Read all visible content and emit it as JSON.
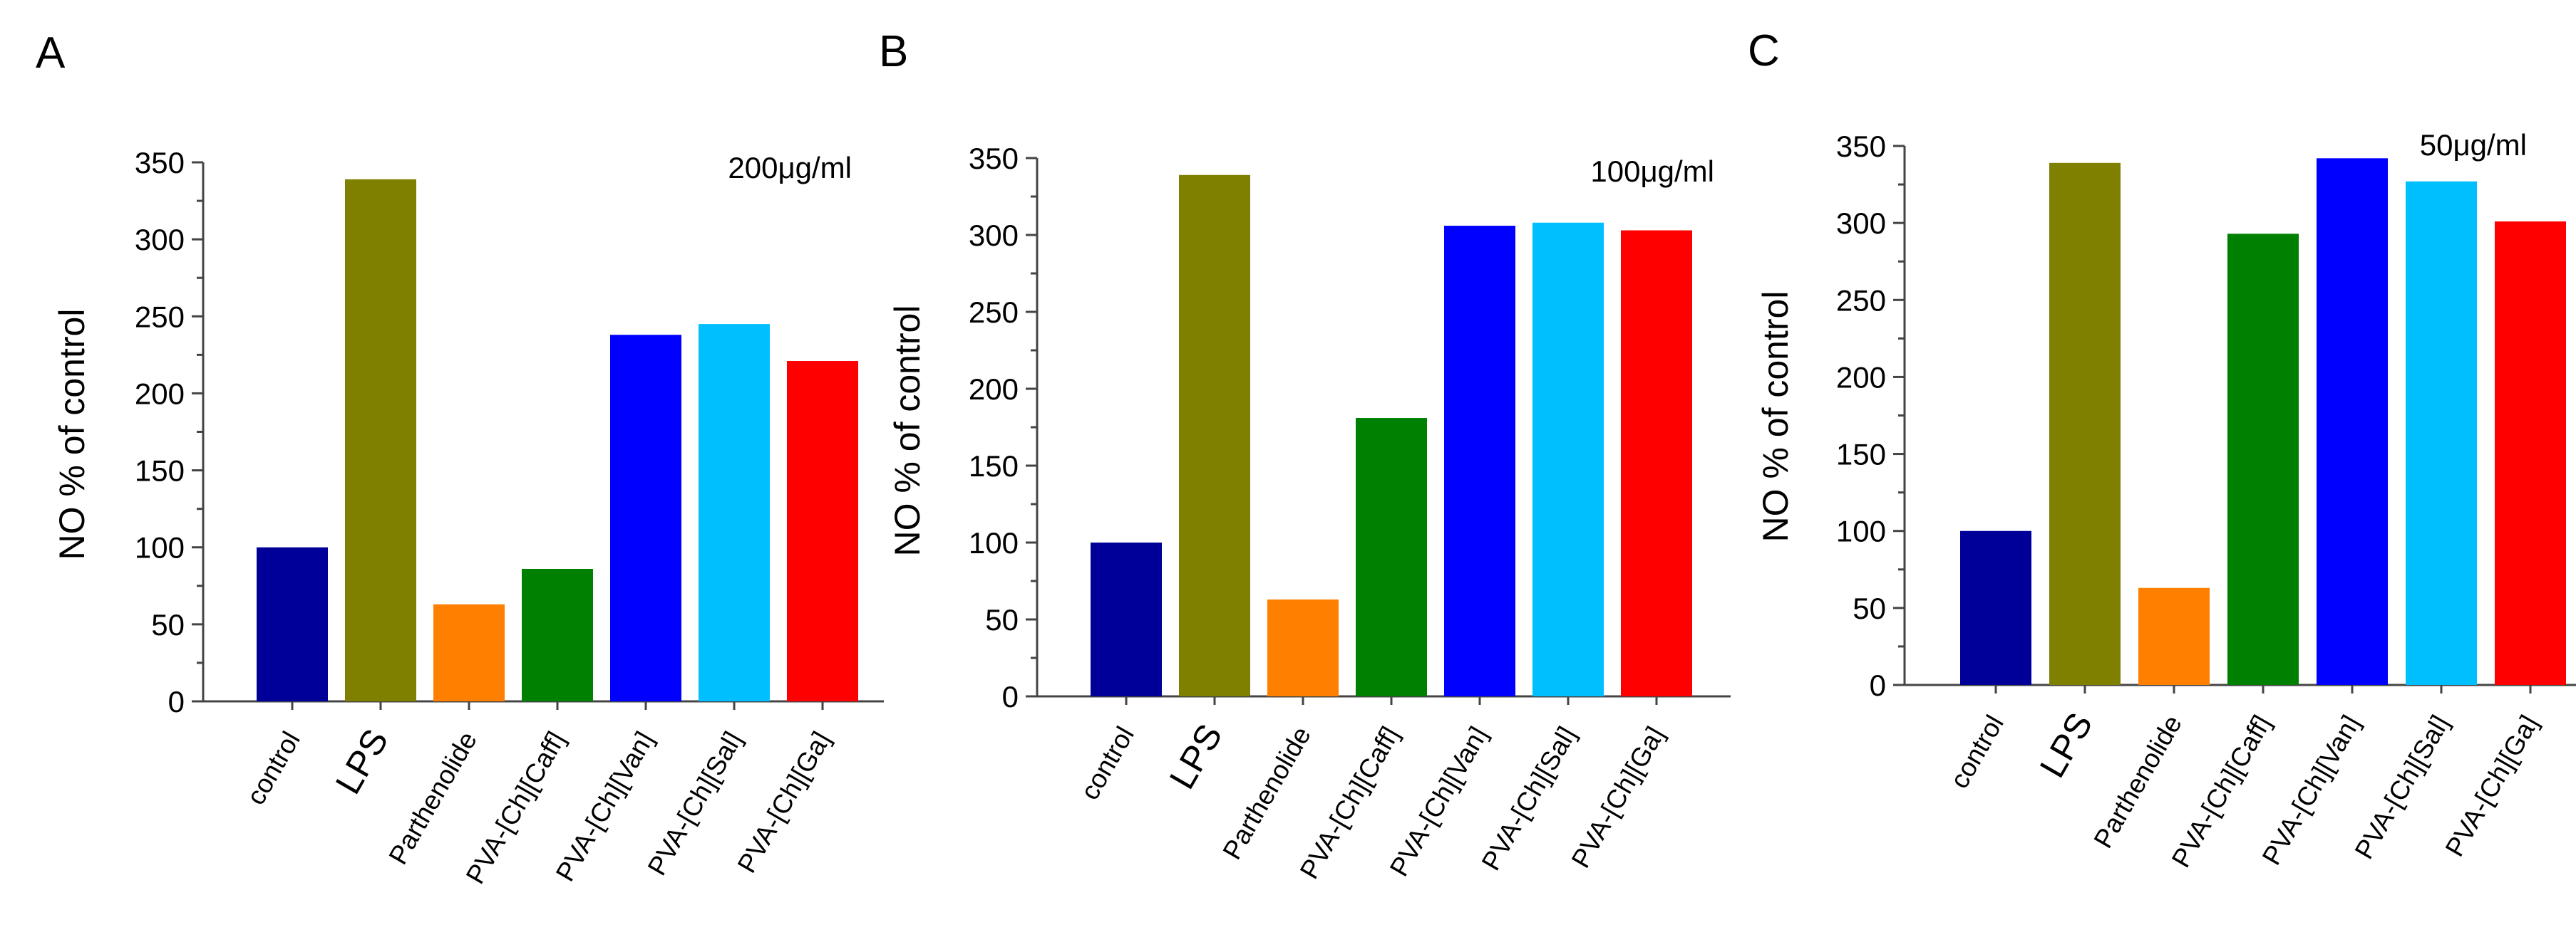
{
  "figure": {
    "panels": [
      "A",
      "B",
      "C"
    ]
  },
  "colors": {
    "control": "#000099",
    "LPS": "#7f7f00",
    "Parthenolide": "#ff8000",
    "PVA-[Ch][Caff]": "#008000",
    "PVA-[Ch][Van]": "#0000ff",
    "PVA-[Ch][Sal]": "#00bfff",
    "PVA-[Ch][Ga]": "#ff0000"
  },
  "chart_data": [
    {
      "type": "bar",
      "panel_label": "A",
      "annotation": "200μg/ml",
      "ylabel": "NO % of control",
      "xlabel": "",
      "ylim": [
        0,
        350
      ],
      "yticks": [
        "0",
        "50",
        "100",
        "150",
        "200",
        "250",
        "300",
        "350"
      ],
      "categories": [
        "control",
        "LPS",
        "Parthenolide",
        "PVA-[Ch][Caff]",
        "PVA-[Ch][Van]",
        "PVA-[Ch][Sal]",
        "PVA-[Ch][Ga]"
      ],
      "values": [
        100,
        339,
        63,
        86,
        238,
        245,
        221
      ]
    },
    {
      "type": "bar",
      "panel_label": "B",
      "annotation": "100μg/ml",
      "ylabel": "NO % of control",
      "xlabel": "",
      "ylim": [
        0,
        350
      ],
      "yticks": [
        "0",
        "50",
        "100",
        "150",
        "200",
        "250",
        "300",
        "350"
      ],
      "categories": [
        "control",
        "LPS",
        "Parthenolide",
        "PVA-[Ch][Caff]",
        "PVA-[Ch][Van]",
        "PVA-[Ch][Sal]",
        "PVA-[Ch][Ga]"
      ],
      "values": [
        100,
        339,
        63,
        181,
        306,
        308,
        303
      ]
    },
    {
      "type": "bar",
      "panel_label": "C",
      "annotation": "50μg/ml",
      "ylabel": "NO % of control",
      "xlabel": "",
      "ylim": [
        0,
        350
      ],
      "yticks": [
        "0",
        "50",
        "100",
        "150",
        "200",
        "250",
        "300",
        "350"
      ],
      "categories": [
        "control",
        "LPS",
        "Parthenolide",
        "PVA-[Ch][Caff]",
        "PVA-[Ch][Van]",
        "PVA-[Ch][Sal]",
        "PVA-[Ch][Ga]"
      ],
      "values": [
        100,
        339,
        63,
        293,
        342,
        327,
        301
      ]
    }
  ]
}
